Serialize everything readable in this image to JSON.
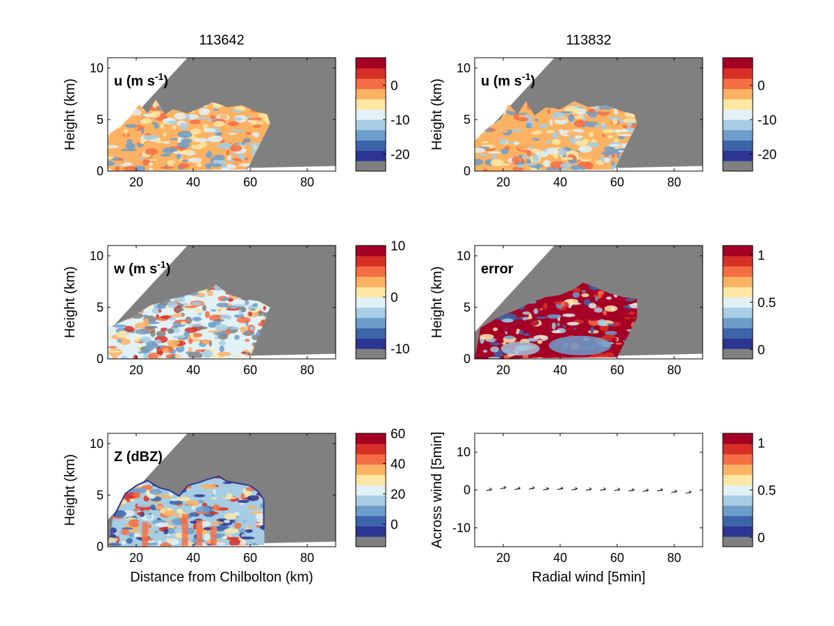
{
  "colormap": [
    "#808080",
    "#2c3591",
    "#3d64a9",
    "#6c9dcb",
    "#a6cde3",
    "#e1f1f5",
    "#fde7a3",
    "#fbb263",
    "#f46d43",
    "#d73027",
    "#a50026"
  ],
  "columns": [
    {
      "title": "113642"
    },
    {
      "title": "113832"
    }
  ],
  "panels": [
    {
      "id": "u-left",
      "type": "field",
      "label": "u (m s",
      "label_sup": "-1",
      "label_close": ")",
      "ylabel": "Height (km)",
      "xlabel": "",
      "xlim": [
        10,
        90
      ],
      "ylim": [
        0,
        11
      ],
      "xticks": [
        "20",
        "40",
        "60",
        "80"
      ],
      "yticks": [
        "0",
        "5",
        "10"
      ],
      "colorbar": {
        "ticks": [
          "0",
          "-10",
          "-20"
        ],
        "tick_levels": [
          0,
          -10,
          -20
        ],
        "min": -25,
        "max": 8
      },
      "echo": {
        "top": [
          [
            10,
            3.5
          ],
          [
            15,
            4.5
          ],
          [
            18,
            5.3
          ],
          [
            21,
            6.5
          ],
          [
            24,
            5.6
          ],
          [
            27,
            7.0
          ],
          [
            30,
            5.5
          ],
          [
            33,
            6.0
          ],
          [
            38,
            5.6
          ],
          [
            43,
            6.2
          ],
          [
            47,
            6.7
          ],
          [
            52,
            6.2
          ],
          [
            57,
            6.4
          ],
          [
            62,
            5.8
          ],
          [
            66,
            5.5
          ],
          [
            67,
            4.6
          ]
        ],
        "base_x": 59,
        "tail_x": 67
      }
    },
    {
      "id": "u-right",
      "type": "field",
      "label": "u (m s",
      "label_sup": "-1",
      "label_close": ")",
      "ylabel": "Height (km)",
      "xlabel": "",
      "xlim": [
        10,
        90
      ],
      "ylim": [
        0,
        11
      ],
      "xticks": [
        "20",
        "40",
        "60",
        "80"
      ],
      "yticks": [
        "0",
        "5",
        "10"
      ],
      "colorbar": {
        "ticks": [
          "0",
          "-10",
          "-20"
        ],
        "tick_levels": [
          0,
          -10,
          -20
        ],
        "min": -25,
        "max": 8
      },
      "echo": {
        "top": [
          [
            10,
            3.0
          ],
          [
            15,
            4.3
          ],
          [
            19,
            5.0
          ],
          [
            22,
            6.5
          ],
          [
            25,
            5.5
          ],
          [
            28,
            6.8
          ],
          [
            31,
            5.4
          ],
          [
            35,
            6.2
          ],
          [
            40,
            6.0
          ],
          [
            45,
            6.8
          ],
          [
            50,
            6.2
          ],
          [
            56,
            6.4
          ],
          [
            62,
            5.8
          ],
          [
            66,
            5.5
          ],
          [
            67,
            4.6
          ]
        ],
        "base_x": 59,
        "tail_x": 67
      }
    },
    {
      "id": "w-left",
      "type": "field",
      "label": "w (m s",
      "label_sup": "-1",
      "label_close": ")",
      "ylabel": "Height (km)",
      "xlabel": "",
      "xlim": [
        10,
        90
      ],
      "ylim": [
        0,
        11
      ],
      "xticks": [
        "20",
        "40",
        "60",
        "80"
      ],
      "yticks": [
        "0",
        "5",
        "10"
      ],
      "colorbar": {
        "ticks": [
          "10",
          "0",
          "-10"
        ],
        "tick_levels": [
          10,
          0,
          -10
        ],
        "min": -12,
        "max": 10
      },
      "echo": {
        "top": [
          [
            10,
            3.0
          ],
          [
            18,
            4.0
          ],
          [
            25,
            5.2
          ],
          [
            32,
            5.8
          ],
          [
            38,
            6.2
          ],
          [
            45,
            6.8
          ],
          [
            48,
            7.2
          ],
          [
            53,
            6.2
          ],
          [
            58,
            5.8
          ],
          [
            63,
            5.6
          ],
          [
            67,
            5.0
          ]
        ],
        "base_x": 60,
        "tail_x": 67
      }
    },
    {
      "id": "error-right",
      "type": "field",
      "label": "error",
      "label_sup": "",
      "label_close": "",
      "ylabel": "Height (km)",
      "xlabel": "",
      "xlim": [
        10,
        90
      ],
      "ylim": [
        0,
        11
      ],
      "xticks": [
        "20",
        "40",
        "60",
        "80"
      ],
      "yticks": [
        "0",
        "5",
        "10"
      ],
      "colorbar": {
        "ticks": [
          "1",
          "0.5",
          "0"
        ],
        "tick_levels": [
          1,
          0.5,
          0
        ],
        "min": -0.1,
        "max": 1.1
      },
      "echo": {
        "top": [
          [
            12,
            3.0
          ],
          [
            18,
            4.0
          ],
          [
            25,
            4.8
          ],
          [
            30,
            5.5
          ],
          [
            35,
            6.0
          ],
          [
            40,
            6.2
          ],
          [
            45,
            6.8
          ],
          [
            48,
            7.4
          ],
          [
            52,
            7.0
          ],
          [
            57,
            6.4
          ],
          [
            62,
            6.0
          ],
          [
            67,
            5.8
          ],
          [
            67,
            4.0
          ]
        ],
        "base_x": 60,
        "tail_x": 67
      }
    },
    {
      "id": "z-left",
      "type": "field",
      "label": "Z (dBZ)",
      "label_sup": "",
      "label_close": "",
      "ylabel": "Height (km)",
      "xlabel": "Distance from Chilbolton (km)",
      "xlim": [
        10,
        90
      ],
      "ylim": [
        0,
        11
      ],
      "xticks": [
        "20",
        "40",
        "60",
        "80"
      ],
      "yticks": [
        "0",
        "5",
        "10"
      ],
      "colorbar": {
        "ticks": [
          "60",
          "40",
          "20",
          "0"
        ],
        "tick_levels": [
          60,
          40,
          20,
          0
        ],
        "min": -15,
        "max": 60
      },
      "echo": {
        "top": [
          [
            12,
            3.0
          ],
          [
            16,
            5.2
          ],
          [
            20,
            6.0
          ],
          [
            24,
            6.5
          ],
          [
            28,
            5.8
          ],
          [
            32,
            5.5
          ],
          [
            35,
            5.0
          ],
          [
            38,
            6.0
          ],
          [
            42,
            6.3
          ],
          [
            45,
            6.6
          ],
          [
            49,
            6.9
          ],
          [
            52,
            6.4
          ],
          [
            56,
            6.2
          ],
          [
            60,
            6.0
          ],
          [
            63,
            5.4
          ],
          [
            65,
            4.6
          ],
          [
            65,
            2.0
          ]
        ],
        "base_x": 65,
        "tail_x": 67
      }
    },
    {
      "id": "wind-right",
      "type": "quiver",
      "label": "",
      "label_sup": "",
      "label_close": "",
      "ylabel": "Across wind [5min]",
      "xlabel": "Radial wind [5min]",
      "xlim": [
        10,
        90
      ],
      "ylim": [
        -15,
        15
      ],
      "xticks": [
        "20",
        "40",
        "60",
        "80"
      ],
      "yticks": [
        "-10",
        "0",
        "10"
      ],
      "colorbar": {
        "ticks": [
          "1",
          "0.5",
          "0"
        ],
        "tick_levels": [
          1,
          0.5,
          0
        ],
        "min": -0.1,
        "max": 1.1
      },
      "arrows": [
        [
          15,
          0
        ],
        [
          20,
          0.5
        ],
        [
          25,
          0.3
        ],
        [
          30,
          0.4
        ],
        [
          35,
          0.2
        ],
        [
          40,
          0.3
        ],
        [
          45,
          0.2
        ],
        [
          50,
          0.1
        ],
        [
          55,
          0.1
        ],
        [
          60,
          0.0
        ],
        [
          65,
          -0.1
        ],
        [
          70,
          -0.2
        ],
        [
          75,
          -0.1
        ],
        [
          80,
          -0.5
        ],
        [
          85,
          -0.7
        ]
      ]
    }
  ]
}
